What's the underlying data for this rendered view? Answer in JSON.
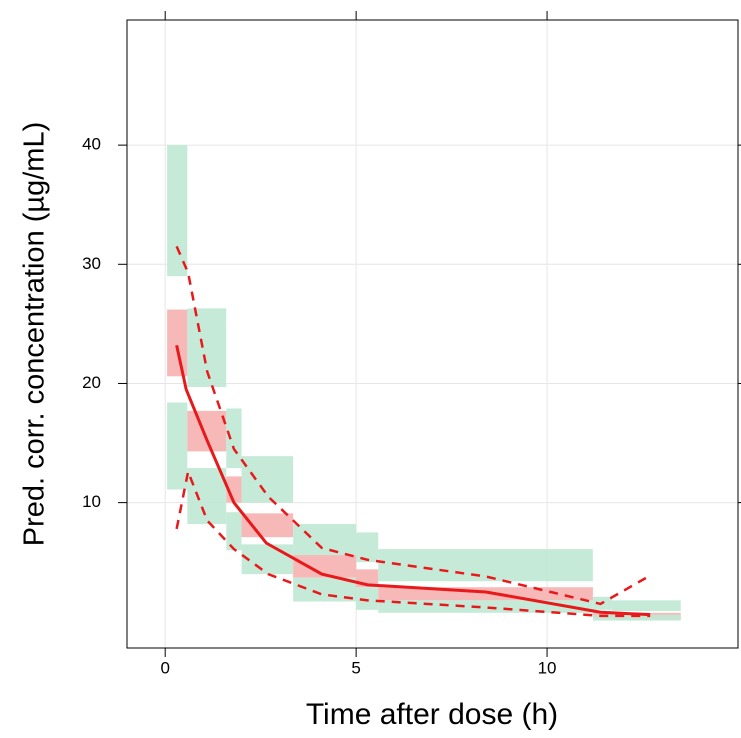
{
  "chart_data": {
    "type": "vpc",
    "xlabel": "Time after dose (h)",
    "ylabel": "Pred. corr. concentration (µg/mL)",
    "xlim": [
      -1,
      15
    ],
    "xticks": [
      0,
      5,
      10
    ],
    "ylim": [
      -2.2,
      50.5
    ],
    "yticks": [
      10,
      20,
      30,
      40
    ],
    "grid": true,
    "pi_color": "#bfe9d4",
    "median_ci_color": "#f6b0b0",
    "bins": [
      {
        "x": [
          0.05,
          0.58
        ],
        "upper": [
          29,
          40
        ],
        "median": [
          20.6,
          26.2
        ],
        "lower": [
          11.1,
          18.4
        ]
      },
      {
        "x": [
          0.58,
          1.6
        ],
        "upper": [
          19.7,
          26.3
        ],
        "median": [
          14.3,
          17.7
        ],
        "lower": [
          8.2,
          12.9
        ]
      },
      {
        "x": [
          1.6,
          2.0
        ],
        "upper": [
          12.9,
          17.9
        ],
        "median": [
          10.0,
          12.2
        ],
        "lower": [
          6.0,
          9.2
        ]
      },
      {
        "x": [
          2.0,
          3.35
        ],
        "upper": [
          10.0,
          13.9
        ],
        "median": [
          7.1,
          9.1
        ],
        "lower": [
          4.0,
          6.5
        ]
      },
      {
        "x": [
          3.35,
          5.0
        ],
        "upper": [
          5.6,
          8.2
        ],
        "median": [
          3.7,
          5.6
        ],
        "lower": [
          1.7,
          3.7
        ]
      },
      {
        "x": [
          5.0,
          5.58
        ],
        "upper": [
          5.0,
          7.5
        ],
        "median": [
          2.9,
          4.4
        ],
        "lower": [
          1.0,
          2.9
        ]
      },
      {
        "x": [
          5.58,
          11.2
        ],
        "upper": [
          3.4,
          6.1
        ],
        "median": [
          1.8,
          2.9
        ],
        "lower": [
          0.75,
          1.8
        ]
      },
      {
        "x": [
          11.2,
          11.7
        ],
        "upper": [
          1.0,
          2.1
        ],
        "median": [
          0.3,
          0.9
        ],
        "lower": [
          0.1,
          0.6
        ]
      },
      {
        "x": [
          11.7,
          13.5
        ],
        "upper": [
          0.9,
          1.8
        ],
        "median": [
          0.2,
          0.75
        ],
        "lower": [
          0.1,
          0.6
        ]
      }
    ],
    "lines": [
      {
        "style": "solid",
        "color": "#e8191b",
        "x": [
          0.3,
          0.55,
          1.1,
          1.8,
          2.65,
          4.1,
          5.3,
          8.4,
          11.4,
          12.7
        ],
        "values": [
          23.2,
          19.5,
          15.2,
          10.0,
          6.6,
          4.0,
          3.1,
          2.5,
          0.8,
          0.6
        ]
      },
      {
        "style": "dashed",
        "color": "#e8191b",
        "x": [
          0.3,
          0.6,
          1.1,
          1.8,
          2.7,
          4.1,
          5.3,
          8.4,
          11.4,
          12.6
        ],
        "values": [
          31.5,
          29.3,
          21.0,
          14.5,
          10.5,
          6.2,
          5.2,
          3.8,
          1.5,
          3.7
        ]
      },
      {
        "style": "dashed",
        "color": "#e8191b",
        "x": [
          0.3,
          0.6,
          1.1,
          1.8,
          2.7,
          4.1,
          5.3,
          8.4,
          11.4,
          12.7
        ],
        "values": [
          7.8,
          12.6,
          8.5,
          6.1,
          4.0,
          2.3,
          1.8,
          1.2,
          0.5,
          0.5
        ]
      }
    ]
  }
}
